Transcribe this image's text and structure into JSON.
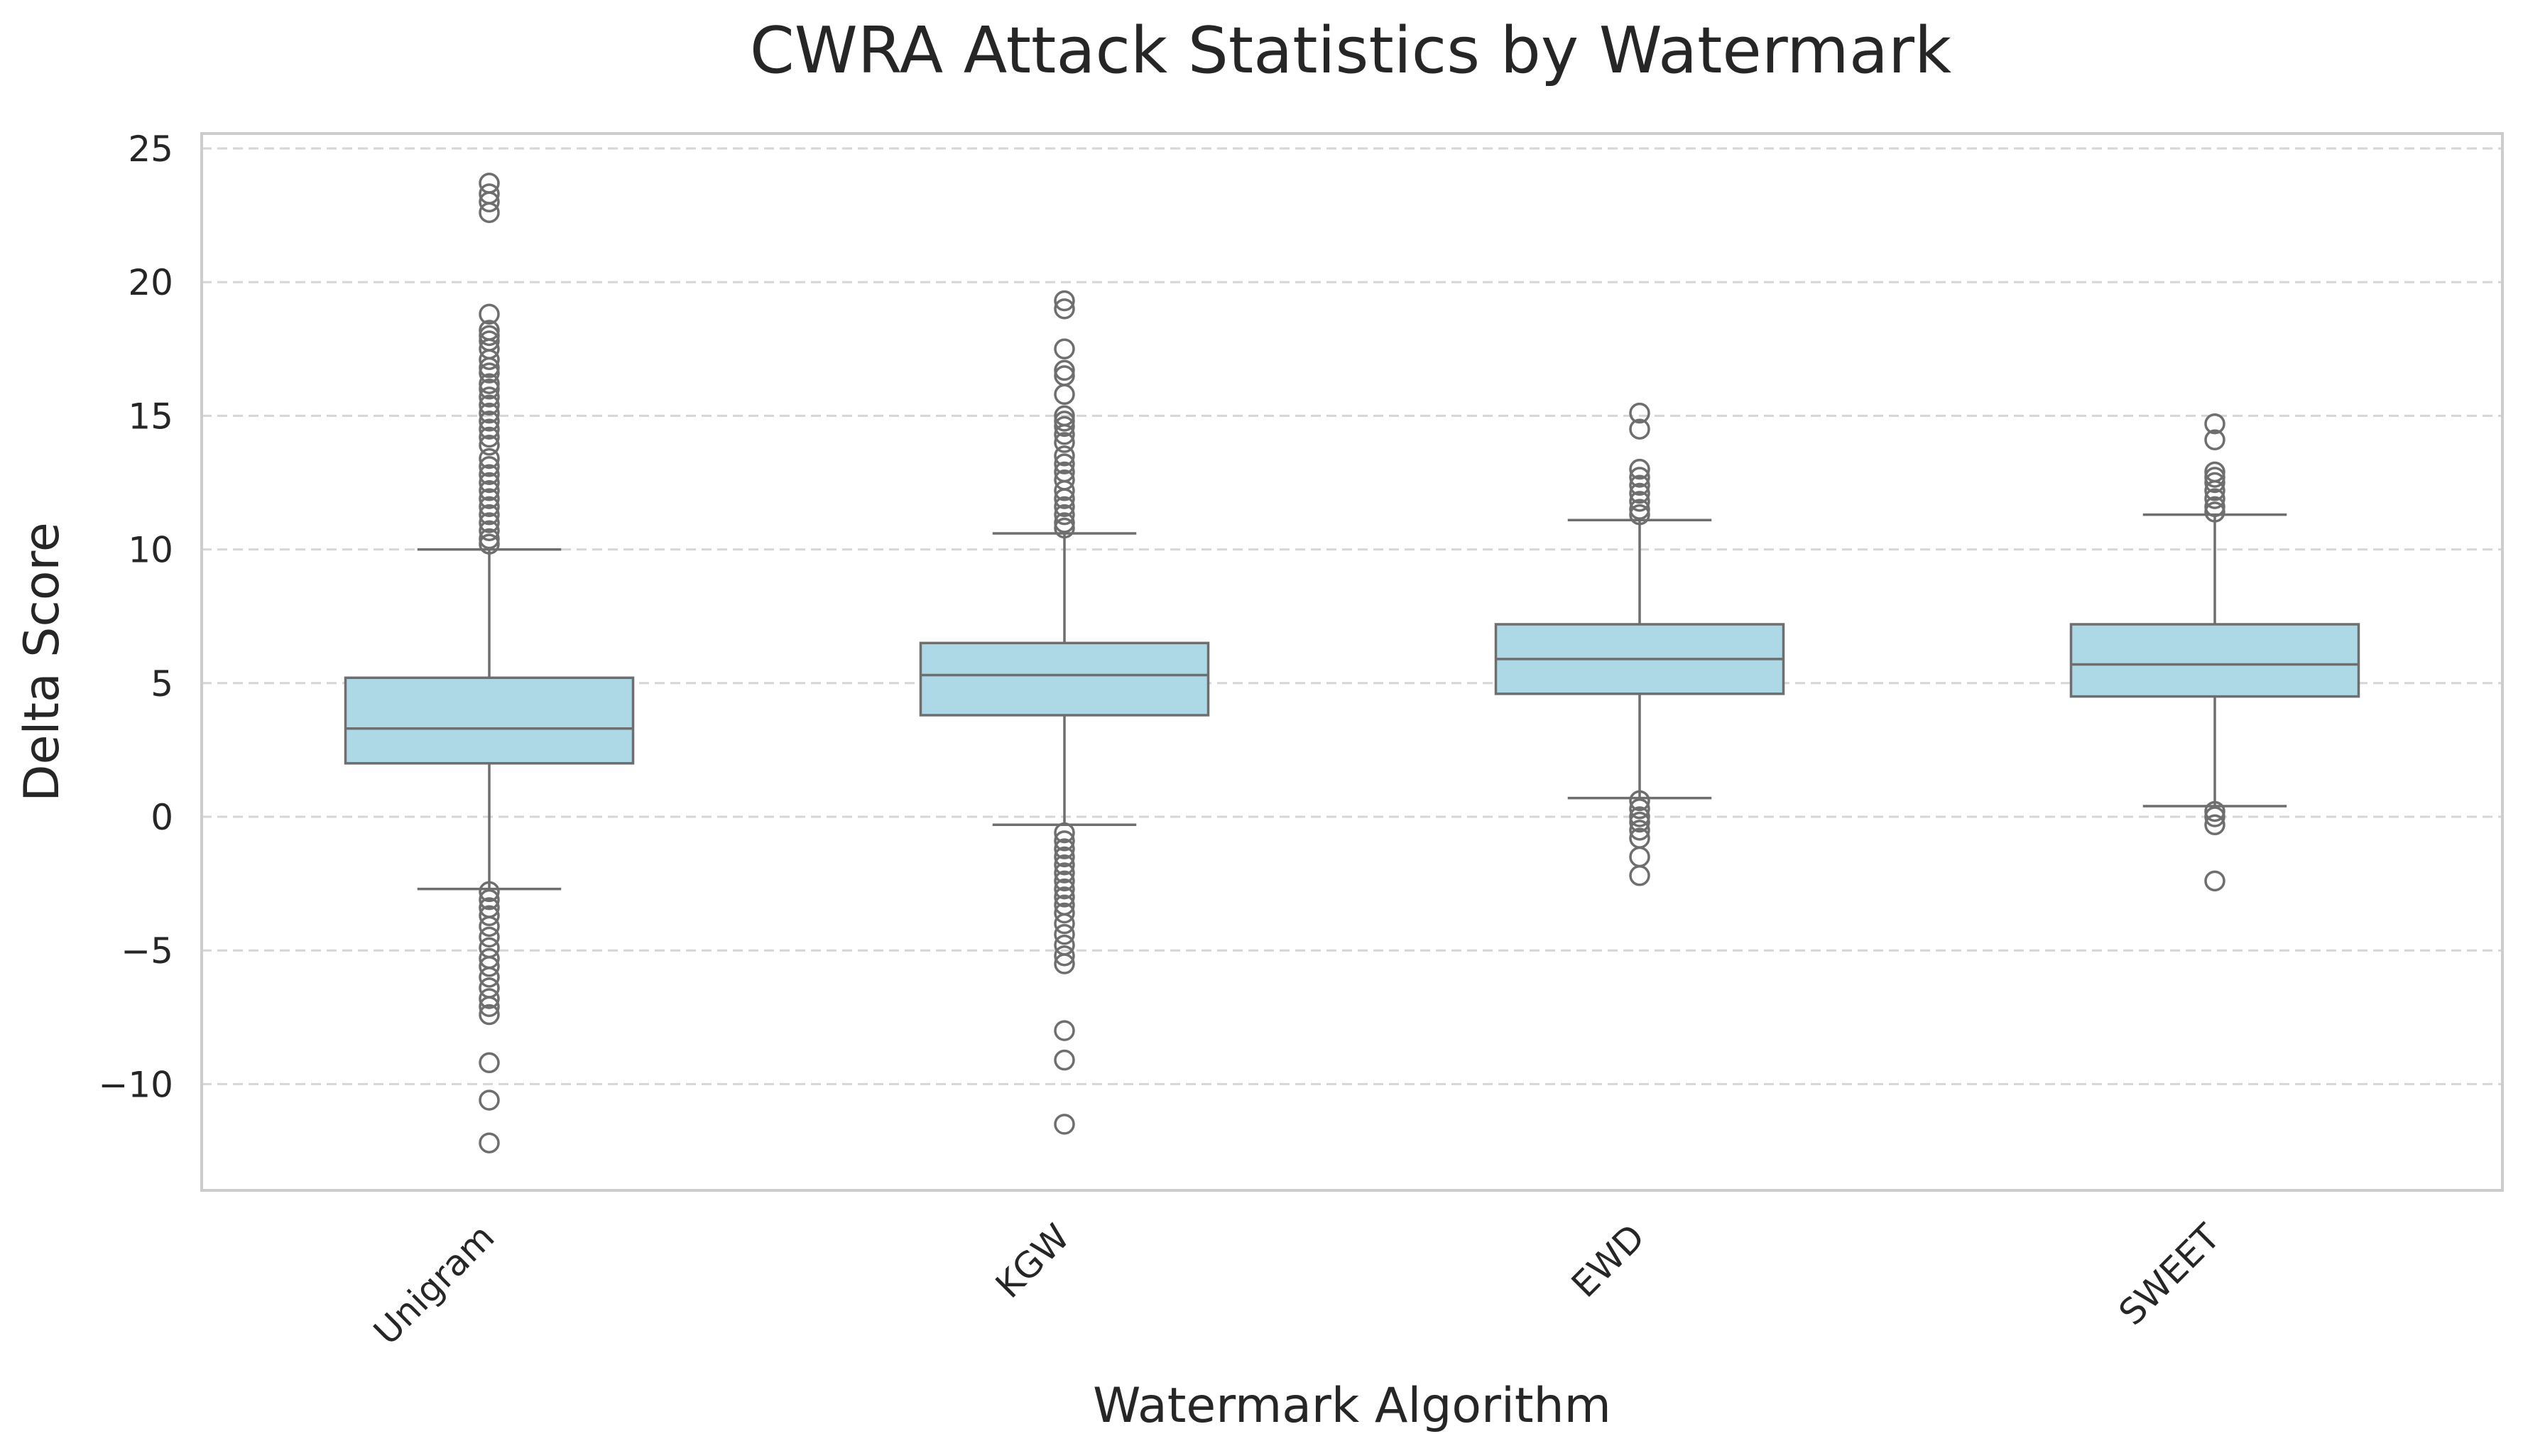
{
  "chart_data": {
    "type": "box",
    "title": "CWRA Attack Statistics by Watermark",
    "xlabel": "Watermark Algorithm",
    "ylabel": "Delta Score",
    "ylim": [
      -14,
      25.5
    ],
    "yticks": [
      -10,
      -5,
      0,
      5,
      10,
      15,
      20,
      25
    ],
    "ytick_labels": [
      "−10",
      "−5",
      "0",
      "5",
      "10",
      "15",
      "20",
      "25"
    ],
    "grid": "y-dashed",
    "box_color": "#add8e6",
    "line_color": "#6e6e6e",
    "categories": [
      "Unigram",
      "KGW",
      "EWD",
      "SWEET"
    ],
    "boxes": [
      {
        "name": "Unigram",
        "whisker_low": -2.7,
        "q1": 2.0,
        "median": 3.3,
        "q3": 5.2,
        "whisker_high": 10.0,
        "outliers": [
          23.7,
          23.3,
          23.0,
          22.6,
          18.8,
          18.2,
          18.0,
          17.8,
          17.5,
          17.1,
          16.8,
          16.6,
          16.2,
          16.0,
          15.7,
          15.4,
          15.1,
          14.8,
          14.5,
          14.2,
          13.9,
          13.4,
          13.1,
          12.8,
          12.5,
          12.2,
          11.9,
          11.6,
          11.3,
          11.0,
          10.7,
          10.4,
          10.2,
          -2.8,
          -3.1,
          -3.4,
          -3.7,
          -4.1,
          -4.5,
          -4.9,
          -5.3,
          -5.6,
          -6.0,
          -6.4,
          -6.8,
          -7.1,
          -7.4,
          -9.2,
          -10.6,
          -12.2
        ]
      },
      {
        "name": "KGW",
        "whisker_low": -0.3,
        "q1": 3.8,
        "median": 5.3,
        "q3": 6.5,
        "whisker_high": 10.6,
        "outliers": [
          19.3,
          19.0,
          17.5,
          16.7,
          16.5,
          15.8,
          15.0,
          14.8,
          14.6,
          14.3,
          14.0,
          13.5,
          13.2,
          12.9,
          12.6,
          12.2,
          11.9,
          11.6,
          11.3,
          11.0,
          10.8,
          -0.6,
          -0.9,
          -1.2,
          -1.5,
          -1.8,
          -2.1,
          -2.4,
          -2.7,
          -3.0,
          -3.3,
          -3.6,
          -4.0,
          -4.4,
          -4.8,
          -5.2,
          -5.5,
          -8.0,
          -9.1,
          -11.5
        ]
      },
      {
        "name": "EWD",
        "whisker_low": 0.7,
        "q1": 4.6,
        "median": 5.9,
        "q3": 7.2,
        "whisker_high": 11.1,
        "outliers": [
          15.1,
          14.5,
          13.0,
          12.7,
          12.4,
          12.1,
          11.8,
          11.5,
          11.3,
          0.6,
          0.3,
          0.0,
          -0.2,
          -0.5,
          -0.8,
          -1.5,
          -2.2
        ]
      },
      {
        "name": "SWEET",
        "whisker_low": 0.4,
        "q1": 4.5,
        "median": 5.7,
        "q3": 7.2,
        "whisker_high": 11.3,
        "outliers": [
          14.7,
          14.1,
          12.9,
          12.7,
          12.5,
          12.2,
          11.9,
          11.6,
          11.4,
          0.2,
          0.0,
          -0.3,
          -2.4
        ]
      }
    ]
  }
}
